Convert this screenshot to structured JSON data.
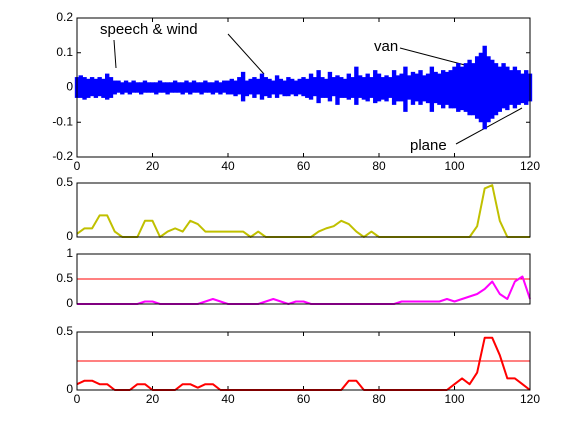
{
  "chart_data": [
    {
      "type": "waveform",
      "annotations": [
        "speech & wind",
        "van",
        "plane"
      ],
      "x": [
        0,
        1,
        2,
        3,
        4,
        5,
        6,
        7,
        8,
        9,
        10,
        11,
        12,
        13,
        14,
        15,
        16,
        17,
        18,
        19,
        20,
        21,
        22,
        23,
        24,
        25,
        26,
        27,
        28,
        29,
        30,
        31,
        32,
        33,
        34,
        35,
        36,
        37,
        38,
        39,
        40,
        41,
        42,
        43,
        44,
        45,
        46,
        47,
        48,
        49,
        50,
        51,
        52,
        53,
        54,
        55,
        56,
        57,
        58,
        59,
        60,
        61,
        62,
        63,
        64,
        65,
        66,
        67,
        68,
        69,
        70,
        71,
        72,
        73,
        74,
        75,
        76,
        77,
        78,
        79,
        80,
        81,
        82,
        83,
        84,
        85,
        86,
        87,
        88,
        89,
        90,
        91,
        92,
        93,
        94,
        95,
        96,
        97,
        98,
        99,
        100,
        101,
        102,
        103,
        104,
        105,
        106,
        107,
        108,
        109,
        110,
        111,
        112,
        113,
        114,
        115,
        116,
        117,
        118,
        119,
        120
      ],
      "series": [
        {
          "color": "#0000ff",
          "values": [
            0.03,
            0.035,
            0.03,
            0.025,
            0.03,
            0.025,
            0.03,
            0.025,
            0.04,
            0.03,
            0.02,
            0.02,
            0.015,
            0.02,
            0.015,
            0.02,
            0.015,
            0.015,
            0.02,
            0.015,
            0.015,
            0.015,
            0.02,
            0.015,
            0.015,
            0.015,
            0.02,
            0.015,
            0.015,
            0.02,
            0.015,
            0.02,
            0.015,
            0.015,
            0.02,
            0.015,
            0.015,
            0.02,
            0.015,
            0.02,
            0.02,
            0.025,
            0.02,
            0.03,
            0.045,
            0.02,
            0.025,
            0.03,
            0.025,
            0.04,
            0.03,
            0.025,
            0.02,
            0.035,
            0.025,
            0.02,
            0.03,
            0.025,
            0.02,
            0.025,
            0.03,
            0.025,
            0.04,
            0.03,
            0.05,
            0.03,
            0.025,
            0.045,
            0.03,
            0.035,
            0.03,
            0.025,
            0.04,
            0.03,
            0.06,
            0.035,
            0.03,
            0.04,
            0.03,
            0.05,
            0.04,
            0.03,
            0.035,
            0.03,
            0.05,
            0.035,
            0.04,
            0.06,
            0.035,
            0.045,
            0.04,
            0.05,
            0.035,
            0.04,
            0.06,
            0.045,
            0.04,
            0.05,
            0.045,
            0.05,
            0.06,
            0.07,
            0.06,
            0.07,
            0.08,
            0.07,
            0.09,
            0.1,
            0.12,
            0.09,
            0.08,
            0.07,
            0.06,
            0.07,
            0.06,
            0.05,
            0.06,
            0.05,
            0.04,
            0.05,
            0.04
          ]
        },
        {
          "color": "#0000ff",
          "values": [
            -0.03,
            -0.03,
            -0.035,
            -0.03,
            -0.025,
            -0.03,
            -0.025,
            -0.03,
            -0.035,
            -0.03,
            -0.02,
            -0.015,
            -0.02,
            -0.015,
            -0.02,
            -0.015,
            -0.015,
            -0.02,
            -0.015,
            -0.015,
            -0.015,
            -0.02,
            -0.015,
            -0.015,
            -0.02,
            -0.015,
            -0.015,
            -0.015,
            -0.02,
            -0.015,
            -0.02,
            -0.015,
            -0.015,
            -0.02,
            -0.015,
            -0.015,
            -0.02,
            -0.015,
            -0.02,
            -0.015,
            -0.02,
            -0.02,
            -0.025,
            -0.02,
            -0.04,
            -0.025,
            -0.02,
            -0.03,
            -0.02,
            -0.035,
            -0.025,
            -0.03,
            -0.02,
            -0.03,
            -0.02,
            -0.025,
            -0.025,
            -0.02,
            -0.025,
            -0.02,
            -0.025,
            -0.03,
            -0.035,
            -0.025,
            -0.045,
            -0.03,
            -0.03,
            -0.04,
            -0.025,
            -0.05,
            -0.03,
            -0.03,
            -0.035,
            -0.03,
            -0.05,
            -0.03,
            -0.035,
            -0.04,
            -0.03,
            -0.045,
            -0.04,
            -0.035,
            -0.04,
            -0.03,
            -0.05,
            -0.04,
            -0.04,
            -0.07,
            -0.035,
            -0.05,
            -0.04,
            -0.05,
            -0.04,
            -0.045,
            -0.07,
            -0.045,
            -0.05,
            -0.06,
            -0.05,
            -0.06,
            -0.06,
            -0.07,
            -0.065,
            -0.07,
            -0.08,
            -0.08,
            -0.09,
            -0.1,
            -0.12,
            -0.1,
            -0.09,
            -0.08,
            -0.07,
            -0.06,
            -0.065,
            -0.05,
            -0.06,
            -0.05,
            -0.045,
            -0.05,
            -0.04
          ]
        }
      ],
      "xlim": [
        0,
        120
      ],
      "xticks": [
        0,
        20,
        40,
        60,
        80,
        100,
        120
      ],
      "ylim": [
        -0.2,
        0.2
      ],
      "yticks": [
        -0.2,
        -0.1,
        0,
        0.1,
        0.2
      ]
    },
    {
      "type": "line",
      "x": [
        0,
        2,
        4,
        6,
        8,
        10,
        12,
        14,
        16,
        18,
        20,
        22,
        24,
        26,
        28,
        30,
        32,
        34,
        36,
        38,
        40,
        42,
        44,
        46,
        48,
        50,
        52,
        54,
        56,
        58,
        60,
        62,
        64,
        66,
        68,
        70,
        72,
        74,
        76,
        78,
        80,
        82,
        84,
        86,
        88,
        90,
        92,
        94,
        96,
        98,
        100,
        102,
        104,
        106,
        108,
        110,
        112,
        114,
        116,
        118,
        120
      ],
      "series": [
        {
          "color": "#c0c000",
          "values": [
            0.03,
            0.08,
            0.08,
            0.2,
            0.2,
            0.05,
            0,
            0,
            0,
            0.15,
            0.15,
            0,
            0.05,
            0.08,
            0.05,
            0.15,
            0.12,
            0.05,
            0.05,
            0.05,
            0.05,
            0.05,
            0.05,
            0,
            0.05,
            0,
            0,
            0,
            0,
            0,
            0,
            0,
            0.05,
            0.08,
            0.1,
            0.15,
            0.12,
            0.05,
            0,
            0.05,
            0,
            0,
            0,
            0,
            0,
            0,
            0,
            0,
            0,
            0,
            0,
            0,
            0,
            0.1,
            0.45,
            0.48,
            0.15,
            0,
            0,
            0,
            0
          ]
        }
      ],
      "xlim": [
        0,
        120
      ],
      "ylim": [
        0,
        0.5
      ],
      "yticks": [
        0,
        0.5
      ]
    },
    {
      "type": "line",
      "x": [
        0,
        2,
        4,
        6,
        8,
        10,
        12,
        14,
        16,
        18,
        20,
        22,
        24,
        26,
        28,
        30,
        32,
        34,
        36,
        38,
        40,
        42,
        44,
        46,
        48,
        50,
        52,
        54,
        56,
        58,
        60,
        62,
        64,
        66,
        68,
        70,
        72,
        74,
        76,
        78,
        80,
        82,
        84,
        86,
        88,
        90,
        92,
        94,
        96,
        98,
        100,
        102,
        104,
        106,
        108,
        110,
        112,
        114,
        116,
        118,
        120
      ],
      "series": [
        {
          "color": "#ff00ff",
          "values": [
            0,
            0,
            0,
            0,
            0,
            0,
            0,
            0,
            0,
            0.05,
            0.05,
            0,
            0,
            0,
            0,
            0,
            0,
            0.05,
            0.1,
            0.05,
            0,
            0,
            0,
            0,
            0,
            0.05,
            0.1,
            0.05,
            0,
            0.05,
            0.05,
            0,
            0,
            0,
            0,
            0,
            0,
            0,
            0,
            0,
            0,
            0,
            0,
            0.05,
            0.05,
            0.05,
            0.05,
            0.05,
            0.05,
            0.1,
            0.05,
            0.1,
            0.15,
            0.2,
            0.3,
            0.45,
            0.2,
            0.1,
            0.45,
            0.55,
            0.1
          ]
        }
      ],
      "xlim": [
        0,
        120
      ],
      "ylim": [
        0,
        1
      ],
      "yticks": [
        0,
        0.5,
        1
      ],
      "threshold": 0.5,
      "threshold_color": "#ff0000"
    },
    {
      "type": "line",
      "x": [
        0,
        2,
        4,
        6,
        8,
        10,
        12,
        14,
        16,
        18,
        20,
        22,
        24,
        26,
        28,
        30,
        32,
        34,
        36,
        38,
        40,
        42,
        44,
        46,
        48,
        50,
        52,
        54,
        56,
        58,
        60,
        62,
        64,
        66,
        68,
        70,
        72,
        74,
        76,
        78,
        80,
        82,
        84,
        86,
        88,
        90,
        92,
        94,
        96,
        98,
        100,
        102,
        104,
        106,
        108,
        110,
        112,
        114,
        116,
        118,
        120
      ],
      "series": [
        {
          "color": "#ff0000",
          "values": [
            0.05,
            0.08,
            0.08,
            0.05,
            0.05,
            0,
            0,
            0,
            0.05,
            0.05,
            0,
            0,
            0,
            0,
            0.05,
            0.05,
            0.02,
            0.05,
            0.05,
            0,
            0,
            0,
            0,
            0,
            0,
            0,
            0,
            0,
            0,
            0,
            0,
            0,
            0,
            0,
            0,
            0,
            0.08,
            0.08,
            0,
            0,
            0,
            0,
            0,
            0,
            0,
            0,
            0,
            0,
            0,
            0,
            0.05,
            0.1,
            0.05,
            0.15,
            0.45,
            0.45,
            0.3,
            0.1,
            0.1,
            0.05,
            0
          ]
        }
      ],
      "xlim": [
        0,
        120
      ],
      "xticks": [
        0,
        20,
        40,
        60,
        80,
        100,
        120
      ],
      "ylim": [
        0,
        0.5
      ],
      "yticks": [
        0,
        0.5
      ],
      "threshold": 0.25,
      "threshold_color": "#ff0000"
    }
  ]
}
